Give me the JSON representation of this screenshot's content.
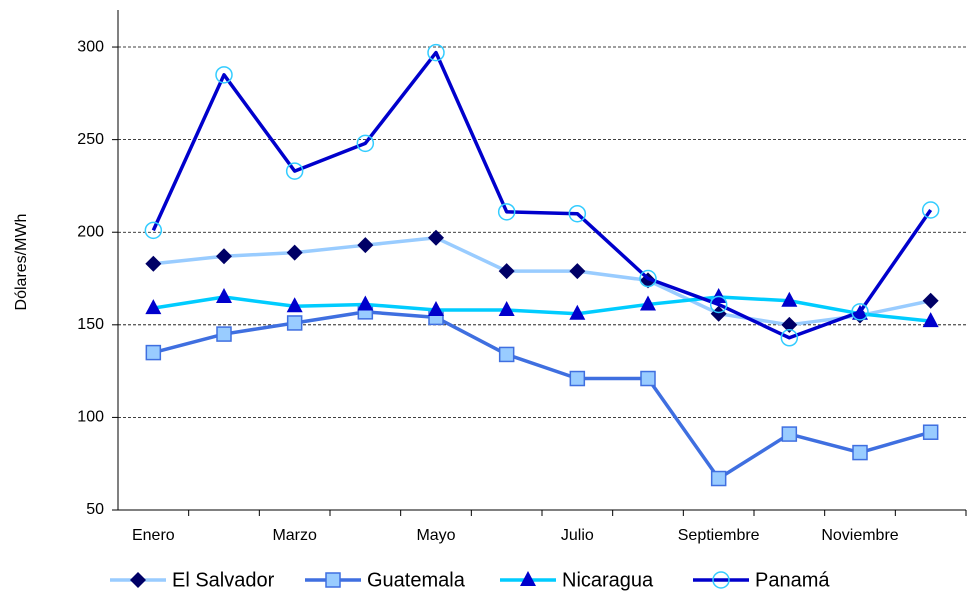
{
  "chart_data": {
    "type": "line",
    "y_label": "Dólares/MWh",
    "categories": [
      "Enero",
      null,
      "Marzo",
      null,
      "Mayo",
      null,
      "Julio",
      null,
      "Septiembre",
      null,
      "Noviembre",
      null
    ],
    "series": [
      {
        "name": "El Salvador",
        "color": "#99ccff",
        "marker": "diamond",
        "marker_color": "#000066",
        "values": [
          183,
          187,
          189,
          193,
          197,
          179,
          179,
          174,
          156,
          150,
          155,
          163
        ]
      },
      {
        "name": "Guatemala",
        "color": "#3f6fe0",
        "marker": "square",
        "marker_color": "#99ccff",
        "values": [
          135,
          145,
          151,
          157,
          154,
          134,
          121,
          121,
          67,
          91,
          81,
          92
        ]
      },
      {
        "name": "Nicaragua",
        "color": "#00ccff",
        "marker": "triangle",
        "marker_color": "#0000cc",
        "values": [
          159,
          165,
          160,
          161,
          158,
          158,
          156,
          161,
          165,
          163,
          156,
          152
        ]
      },
      {
        "name": "Panamá",
        "color": "#0000cc",
        "marker": "circle",
        "marker_color": "#33ccff",
        "values": [
          201,
          285,
          233,
          248,
          297,
          211,
          210,
          175,
          161,
          143,
          157,
          212
        ]
      }
    ],
    "ylim": [
      50,
      320
    ],
    "yticks": [
      50,
      100,
      150,
      200,
      250,
      300
    ],
    "grid": true,
    "legend": "bottom"
  }
}
